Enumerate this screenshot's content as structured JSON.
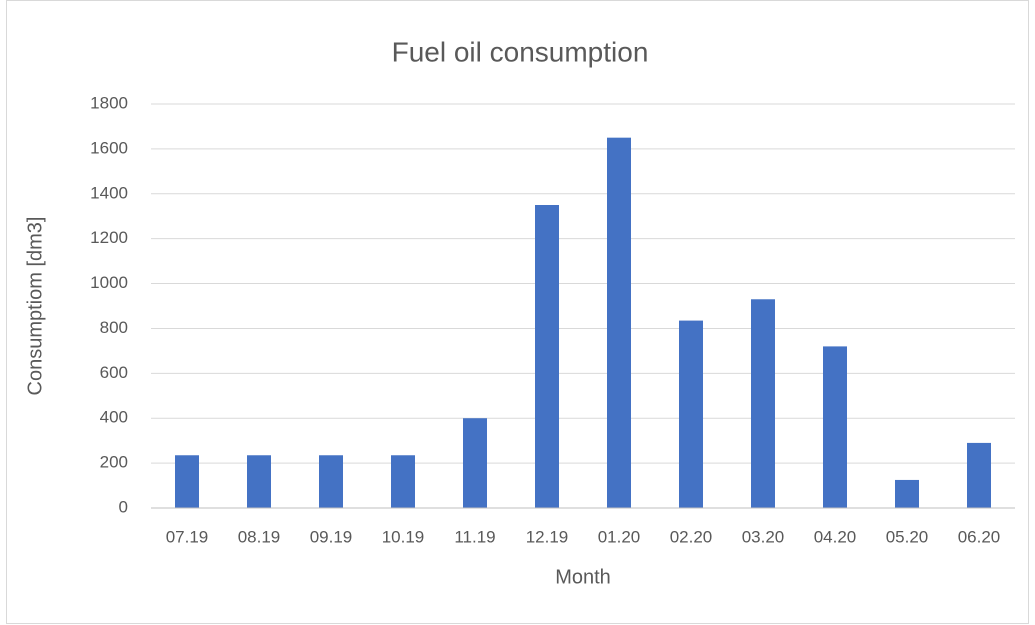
{
  "chart_data": {
    "type": "bar",
    "title": "Fuel oil consumption",
    "x_label": "Month",
    "y_label": "Consumptiom [dm3]",
    "categories": [
      "07.19",
      "08.19",
      "09.19",
      "10.19",
      "11.19",
      "12.19",
      "01.20",
      "02.20",
      "03.20",
      "04.20",
      "05.20",
      "06.20"
    ],
    "values": [
      235,
      235,
      235,
      235,
      400,
      1350,
      1650,
      835,
      930,
      720,
      125,
      290
    ],
    "color": "#4472c4",
    "ylim": [
      0,
      1800
    ],
    "yticks": [
      0,
      200,
      400,
      600,
      800,
      1000,
      1200,
      1400,
      1600,
      1800
    ],
    "grid": true
  }
}
